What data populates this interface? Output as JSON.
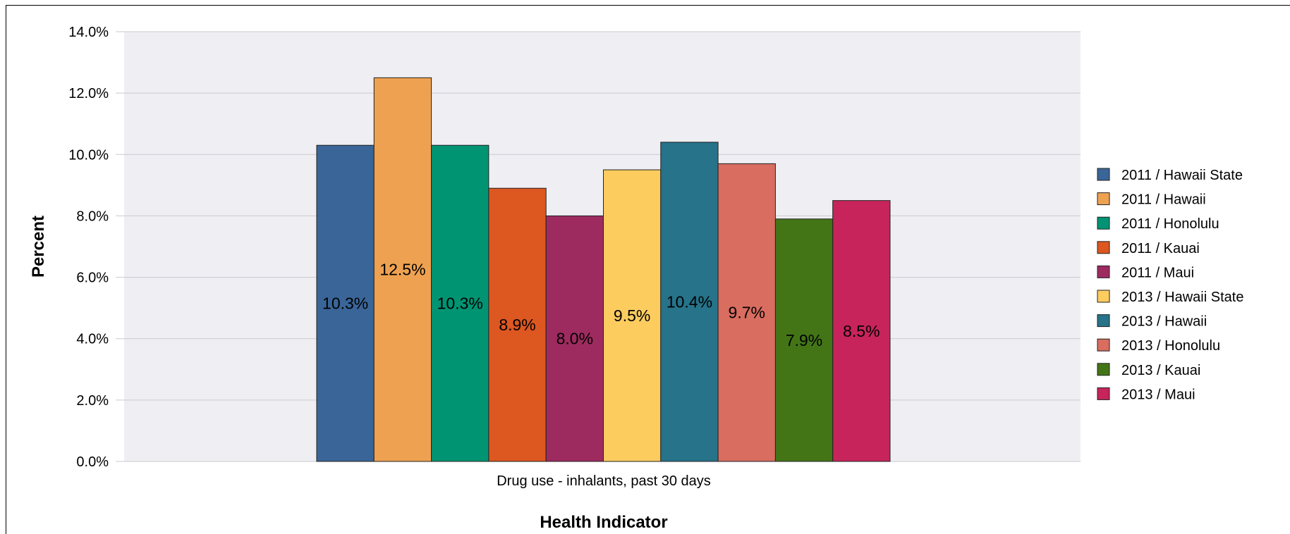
{
  "chart_data": {
    "type": "bar",
    "xlabel": "Health Indicator",
    "ylabel": "Percent",
    "categories": [
      "Drug use - inhalants, past 30 days"
    ],
    "ylim": [
      0,
      14
    ],
    "yticks": [
      "0.0%",
      "2.0%",
      "4.0%",
      "6.0%",
      "8.0%",
      "10.0%",
      "12.0%",
      "14.0%"
    ],
    "grid": true,
    "legend_position": "right",
    "series": [
      {
        "name": "2011 / Hawaii State",
        "values": [
          10.3
        ],
        "label": "10.3%",
        "color": "#3a6598"
      },
      {
        "name": "2011 / Hawaii",
        "values": [
          12.5
        ],
        "label": "12.5%",
        "color": "#eea251"
      },
      {
        "name": "2011 / Honolulu",
        "values": [
          10.3
        ],
        "label": "10.3%",
        "color": "#009473"
      },
      {
        "name": "2011 / Kauai",
        "values": [
          8.9
        ],
        "label": "8.9%",
        "color": "#dd5720"
      },
      {
        "name": "2011 / Maui",
        "values": [
          8.0
        ],
        "label": "8.0%",
        "color": "#9e2b5f"
      },
      {
        "name": "2013 / Hawaii State",
        "values": [
          9.5
        ],
        "label": "9.5%",
        "color": "#fdcc5f"
      },
      {
        "name": "2013 / Hawaii",
        "values": [
          10.4
        ],
        "label": "10.4%",
        "color": "#26738a"
      },
      {
        "name": "2013 / Honolulu",
        "values": [
          9.7
        ],
        "label": "9.7%",
        "color": "#d86d60"
      },
      {
        "name": "2013 / Kauai",
        "values": [
          7.9
        ],
        "label": "7.9%",
        "color": "#437517"
      },
      {
        "name": "2013 / Maui",
        "values": [
          8.5
        ],
        "label": "8.5%",
        "color": "#c7245b"
      }
    ]
  }
}
